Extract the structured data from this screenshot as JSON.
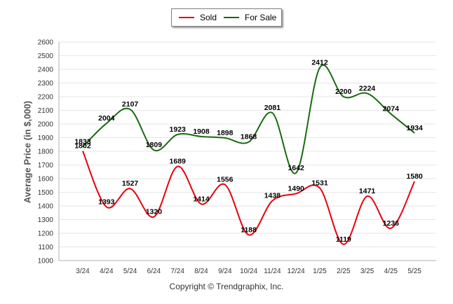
{
  "chart_data": {
    "type": "line",
    "title": "",
    "xlabel": "",
    "ylabel": "Average Price (in $,000)",
    "categories": [
      "3/24",
      "4/24",
      "5/24",
      "6/24",
      "7/24",
      "8/24",
      "9/24",
      "10/24",
      "11/24",
      "12/24",
      "1/25",
      "2/25",
      "3/25",
      "4/25",
      "5/25"
    ],
    "ylim": [
      1000,
      2600
    ],
    "yticks": [
      "1000",
      "1100",
      "1200",
      "1300",
      "1400",
      "1500",
      "1600",
      "1700",
      "1800",
      "1900",
      "2000",
      "2100",
      "2200",
      "2300",
      "2400",
      "2500",
      "2600"
    ],
    "grid": true,
    "legend_position": "top-center",
    "series": [
      {
        "name": "Sold",
        "color": "#e8000b",
        "values": [
          1802,
          1393,
          1527,
          1320,
          1689,
          1414,
          1556,
          1188,
          1438,
          1490,
          1531,
          1119,
          1471,
          1236,
          1580
        ]
      },
      {
        "name": "For Sale",
        "color": "#1a6b10",
        "values": [
          1833,
          2004,
          2107,
          1809,
          1923,
          1908,
          1898,
          1868,
          2081,
          1642,
          2412,
          2200,
          2224,
          2074,
          1934
        ]
      }
    ]
  },
  "legend": {
    "sold": "Sold",
    "for_sale": "For Sale"
  },
  "footer": {
    "copyright": "Copyright © Trendgraphix, Inc."
  }
}
